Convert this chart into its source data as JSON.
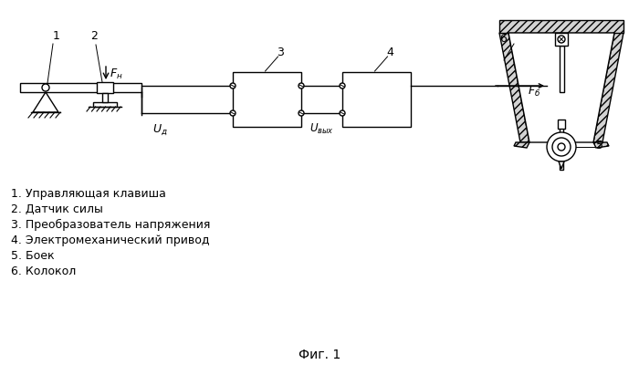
{
  "title": "Фиг. 1",
  "labels": [
    "1. Управляющая клавиша",
    "2. Датчик силы",
    "3. Преобразователь напряжения",
    "4. Электромеханический привод",
    "5. Боек",
    "6. Колокол"
  ],
  "bg_color": "#ffffff",
  "line_color": "#000000"
}
